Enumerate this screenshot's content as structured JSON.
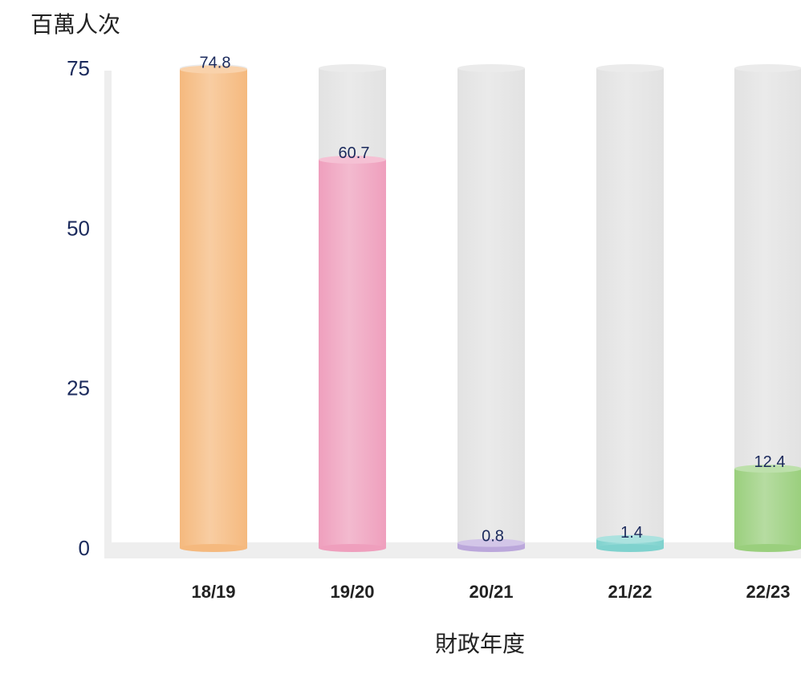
{
  "chart_data": {
    "type": "bar",
    "ylabel": "百萬人次",
    "xlabel": "財政年度",
    "categories": [
      "18/19",
      "19/20",
      "20/21",
      "21/22",
      "22/23"
    ],
    "values": [
      74.8,
      60.7,
      0.8,
      1.4,
      12.4
    ],
    "value_labels": [
      "74.8",
      "60.7",
      "0.8",
      "1.4",
      "12.4"
    ],
    "ylim": [
      0,
      75
    ],
    "yticks": [
      "0",
      "25",
      "50",
      "75"
    ],
    "grid": false,
    "legend": "none",
    "colors": [
      "#f5b97e",
      "#ef9fbd",
      "#bba7db",
      "#7fd2ce",
      "#9acf7d"
    ],
    "track_color": "#e2e2e2",
    "axis_color": "#eeeeee"
  }
}
